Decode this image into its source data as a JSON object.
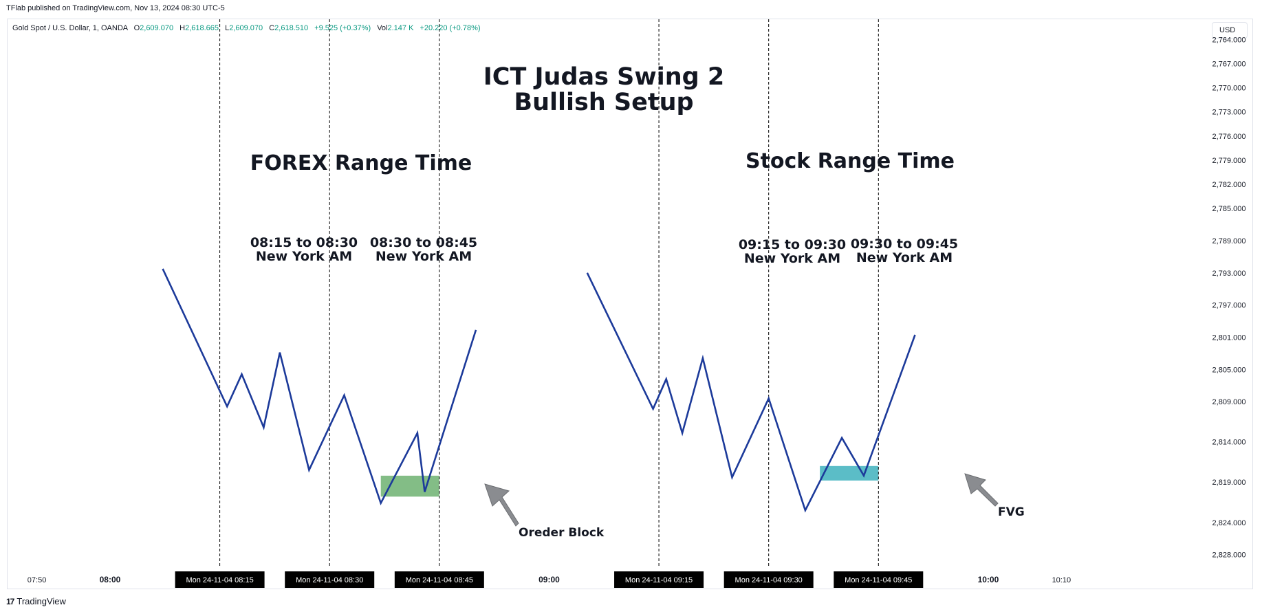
{
  "header": {
    "caption": "TFlab published on TradingView.com, Nov 13, 2024 08:30 UTC-5"
  },
  "legend": {
    "symbol": "Gold Spot / U.S. Dollar, 1, OANDA",
    "o_label": "O",
    "o_value": "2,609.070",
    "h_label": "H",
    "h_value": "2,618.665",
    "l_label": "L",
    "l_value": "2,609.070",
    "c_label": "C",
    "c_value": "2,618.510",
    "change": "+9.525 (+0.37%)",
    "vol_label": "Vol",
    "vol_value": "2.147 K",
    "vol_change": "+20.220 (+0.78%)"
  },
  "currency_button": "USD",
  "footer": {
    "brand": "TradingView",
    "logo_text": "17"
  },
  "colors": {
    "line": "#1c3a9a",
    "order_block": "#83bd86",
    "fvg": "#5bbdc7",
    "arrow": "#8a8c90",
    "legend_green": "#089981",
    "time_tag_bg": "#000000"
  },
  "chart_data": {
    "type": "line",
    "title": "ICT Judas Swing 2\nBullish Setup",
    "y_axis": {
      "side": "right",
      "inverted": true,
      "ylim": [
        2761.5,
        2830.0
      ],
      "tick_labels": [
        "2,764.000",
        "2,767.000",
        "2,770.000",
        "2,773.000",
        "2,776.000",
        "2,779.000",
        "2,782.000",
        "2,785.000",
        "2,789.000",
        "2,793.000",
        "2,797.000",
        "2,801.000",
        "2,805.000",
        "2,809.000",
        "2,814.000",
        "2,819.000",
        "2,824.000",
        "2,828.000"
      ],
      "tick_values": [
        2764,
        2767,
        2770,
        2773,
        2776,
        2779,
        2782,
        2785,
        2789,
        2793,
        2797,
        2801,
        2805,
        2809,
        2814,
        2819,
        2824,
        2828
      ]
    },
    "x_axis": {
      "unit": "minutes since 00:00, Mon 24-11-04",
      "xlim": [
        466,
        636
      ],
      "tick_labels": [
        {
          "x": 470,
          "label": "07:50",
          "bold": false
        },
        {
          "x": 480,
          "label": "08:00",
          "bold": true
        },
        {
          "x": 540,
          "label": "09:00",
          "bold": true
        },
        {
          "x": 600,
          "label": "10:00",
          "bold": true
        },
        {
          "x": 610,
          "label": "10:10",
          "bold": false
        }
      ],
      "time_tags": [
        {
          "x": 495,
          "label": "Mon 24-11-04   08:15"
        },
        {
          "x": 510,
          "label": "Mon 24-11-04   08:30"
        },
        {
          "x": 525,
          "label": "Mon 24-11-04   08:45"
        },
        {
          "x": 555,
          "label": "Mon 24-11-04   09:15"
        },
        {
          "x": 570,
          "label": "Mon 24-11-04   09:30"
        },
        {
          "x": 585,
          "label": "Mon 24-11-04   09:45"
        }
      ]
    },
    "vertical_lines_x": [
      495,
      510,
      525,
      555,
      570,
      585
    ],
    "series": [
      {
        "values": [
          {
            "x": 487.2,
            "y": 2792.5
          },
          {
            "x": 496.0,
            "y": 2809.6
          },
          {
            "x": 498.0,
            "y": 2805.6
          },
          {
            "x": 501.0,
            "y": 2812.2
          },
          {
            "x": 503.2,
            "y": 2802.9
          },
          {
            "x": 507.2,
            "y": 2817.5
          },
          {
            "x": 512.0,
            "y": 2808.2
          },
          {
            "x": 517.0,
            "y": 2821.6
          },
          {
            "x": 522.0,
            "y": 2812.9
          },
          {
            "x": 523.0,
            "y": 2820.2
          },
          {
            "x": 530.0,
            "y": 2800.1
          }
        ]
      },
      {
        "values": [
          {
            "x": 545.2,
            "y": 2793.0
          },
          {
            "x": 554.2,
            "y": 2809.9
          },
          {
            "x": 556.0,
            "y": 2806.2
          },
          {
            "x": 558.2,
            "y": 2812.9
          },
          {
            "x": 561.0,
            "y": 2803.6
          },
          {
            "x": 565.0,
            "y": 2818.4
          },
          {
            "x": 570.0,
            "y": 2808.6
          },
          {
            "x": 575.0,
            "y": 2822.5
          },
          {
            "x": 580.0,
            "y": 2813.5
          },
          {
            "x": 583.0,
            "y": 2818.2
          },
          {
            "x": 590.0,
            "y": 2800.7
          }
        ]
      }
    ],
    "zones": [
      {
        "x0": 517.0,
        "x1": 525.0,
        "y_top": 2818.2,
        "y_bottom": 2820.8,
        "color": "#83bd86"
      },
      {
        "x0": 577.0,
        "x1": 585.0,
        "y_top": 2817.0,
        "y_bottom": 2818.8,
        "color": "#5bbdc7"
      }
    ],
    "annotations": {
      "title": "ICT Judas Swing 2\nBullish Setup",
      "forex_range": "FOREX Range Time",
      "stock_range": "Stock Range Time",
      "window1": "08:15 to 08:30\nNew York AM",
      "window2": "08:30 to 08:45\nNew York AM",
      "window3": "09:15 to 09:30\nNew York AM",
      "window4": "09:30 to 09:45\nNew York AM",
      "order_block": "Oreder Block",
      "fvg": "FVG"
    }
  }
}
